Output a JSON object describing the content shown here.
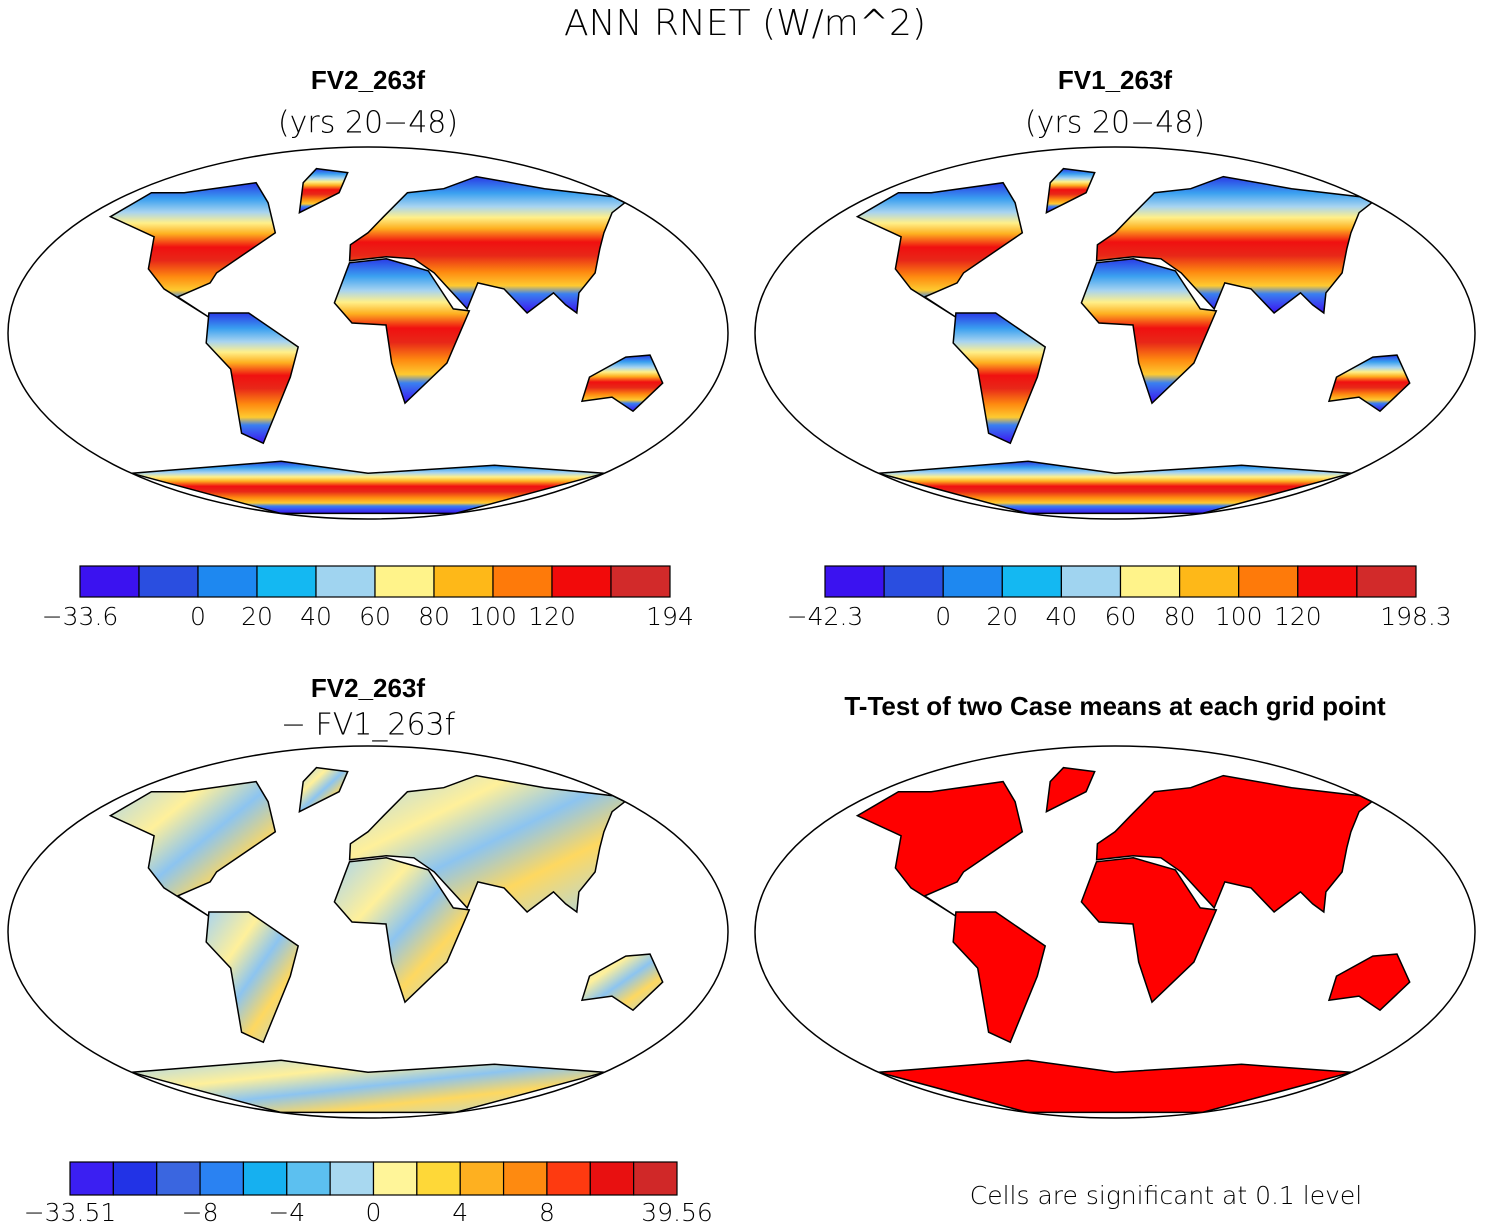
{
  "title": "ANN RNET (W/m^2)",
  "panels": [
    {
      "title": "FV2_263f",
      "subtitle": "(yrs 20−48)",
      "colorbar": {
        "colors": [
          "#3b12f0",
          "#2a4ee0",
          "#1e88f0",
          "#14b8f2",
          "#a0d4f0",
          "#fff38a",
          "#feb818",
          "#fe7a0a",
          "#f20a0a",
          "#d22a2a"
        ],
        "labels": [
          "−33.6",
          null,
          "0",
          "20",
          "40",
          "60",
          "80",
          "100",
          "120",
          null,
          "194"
        ]
      }
    },
    {
      "title": "FV1_263f",
      "subtitle": "(yrs 20−48)",
      "colorbar": {
        "colors": [
          "#3b12f0",
          "#2a4ee0",
          "#1e88f0",
          "#14b8f2",
          "#a0d4f0",
          "#fff38a",
          "#feb818",
          "#fe7a0a",
          "#f20a0a",
          "#d22a2a"
        ],
        "labels": [
          "−42.3",
          null,
          "0",
          "20",
          "40",
          "60",
          "80",
          "100",
          "120",
          null,
          "198.3"
        ]
      }
    },
    {
      "title": "FV2_263f",
      "subtitle": "− FV1_263f",
      "colorbar": {
        "colors": [
          "#3b1ff2",
          "#2233e6",
          "#3a66e0",
          "#2a82f2",
          "#16b0f0",
          "#5cc0f0",
          "#a8d8f0",
          "#fff599",
          "#fed838",
          "#feb020",
          "#fe8a10",
          "#fe3a10",
          "#e81010",
          "#d02828"
        ],
        "labels": [
          "−33.51",
          null,
          null,
          "−8",
          null,
          "−4",
          null,
          "0",
          null,
          "4",
          null,
          "8",
          null,
          null,
          "39.56"
        ]
      }
    },
    {
      "title": "T-Test of two Case means at each grid point",
      "note": "Cells are significant at 0.1 level"
    }
  ]
}
